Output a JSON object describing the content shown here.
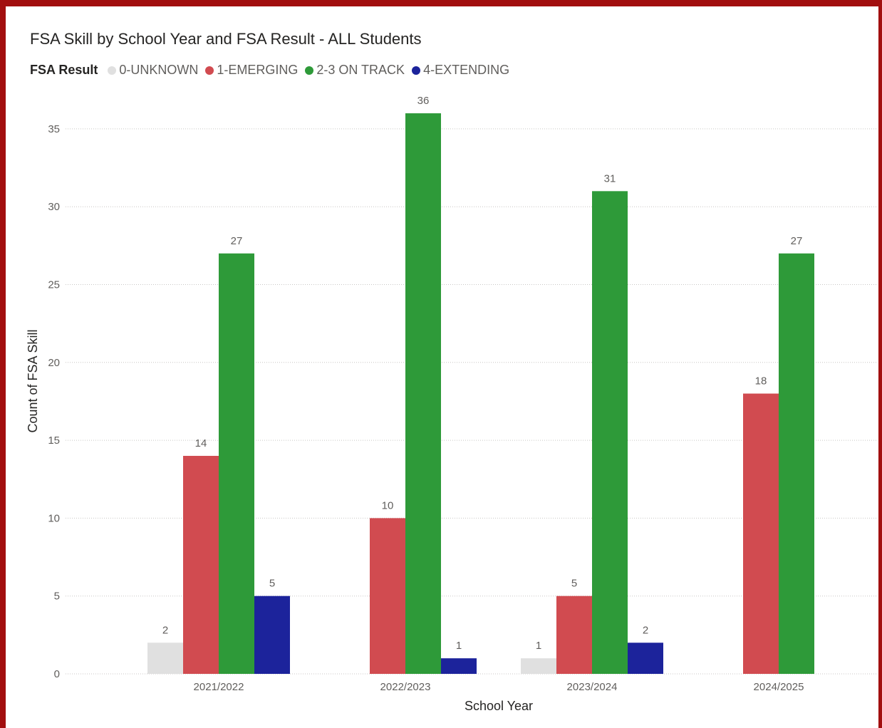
{
  "chart_data": {
    "type": "bar",
    "title": "FSA Skill by School Year and FSA Result - ALL Students",
    "legend_title": "FSA Result",
    "legend_position": "top-left",
    "xlabel": "School Year",
    "ylabel": "Count of FSA Skill",
    "ylim": [
      0,
      36
    ],
    "yticks": [
      0,
      5,
      10,
      15,
      20,
      25,
      30,
      35
    ],
    "grid": true,
    "categories": [
      "2021/2022",
      "2022/2023",
      "2023/2024",
      "2024/2025"
    ],
    "series": [
      {
        "name": "0-UNKNOWN",
        "color": "#e0e0e0",
        "values": [
          2,
          null,
          1,
          null
        ]
      },
      {
        "name": "1-EMERGING",
        "color": "#d14b50",
        "values": [
          14,
          10,
          5,
          18
        ]
      },
      {
        "name": "2-3 ON TRACK",
        "color": "#2e9a39",
        "values": [
          27,
          36,
          31,
          27
        ]
      },
      {
        "name": "4-EXTENDING",
        "color": "#1c239b",
        "values": [
          5,
          1,
          2,
          null
        ]
      }
    ]
  }
}
